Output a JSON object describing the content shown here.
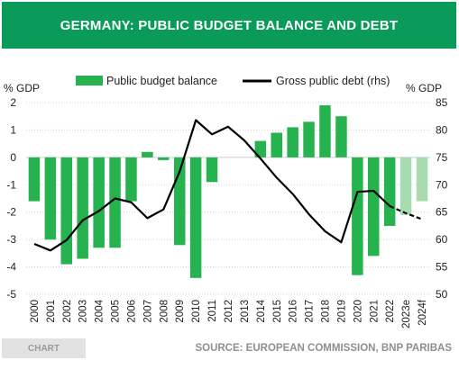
{
  "title": "GERMANY: PUBLIC BUDGET BALANCE AND DEBT",
  "footer": {
    "tag": "CHART",
    "source": "SOURCE: EUROPEAN COMMISSION, BNP PARIBAS"
  },
  "colors": {
    "brand_green": "#0a9b5a",
    "bar_green": "#26b34f",
    "bar_forecast": "#a8dcb0",
    "debt_line": "#000000"
  },
  "chart_data": {
    "type": "bar",
    "categories": [
      "2000",
      "2001",
      "2002",
      "2003",
      "2004",
      "2005",
      "2006",
      "2007",
      "2008",
      "2009",
      "2010",
      "2011",
      "2012",
      "2013",
      "2014",
      "2015",
      "2016",
      "2017",
      "2018",
      "2019",
      "2020",
      "2021",
      "2022",
      "2023e",
      "2024f"
    ],
    "ylabel": "% GDP",
    "ylim": [
      -5,
      2
    ],
    "yticks": [
      "2",
      "1",
      "0",
      "-1",
      "-2",
      "-3",
      "-4",
      "-5"
    ],
    "y2label": "% GDP",
    "y2lim": [
      50,
      85
    ],
    "y2ticks": [
      "85",
      "80",
      "75",
      "70",
      "65",
      "60",
      "55",
      "50"
    ],
    "series": [
      {
        "name": "Public budget balance",
        "type": "bar",
        "axis": "left",
        "values": [
          -1.6,
          -3.0,
          -3.9,
          -3.7,
          -3.3,
          -3.3,
          -1.6,
          0.2,
          -0.1,
          -3.2,
          -4.4,
          -0.9,
          0.0,
          0.0,
          0.6,
          0.9,
          1.1,
          1.3,
          1.9,
          1.5,
          -4.3,
          -3.6,
          -2.5,
          -2.1,
          -1.6
        ],
        "forecast_from": "2023e"
      },
      {
        "name": "Gross public debt (rhs)",
        "type": "line",
        "axis": "right",
        "values": [
          59.2,
          58.0,
          59.9,
          63.5,
          65.2,
          67.5,
          66.8,
          63.9,
          65.5,
          72.4,
          81.8,
          79.2,
          80.6,
          78.1,
          74.8,
          71.3,
          68.3,
          64.6,
          61.5,
          59.5,
          68.7,
          68.9,
          66.1,
          64.8,
          63.7
        ],
        "dashed_from": "2022"
      }
    ],
    "legend": "top"
  }
}
